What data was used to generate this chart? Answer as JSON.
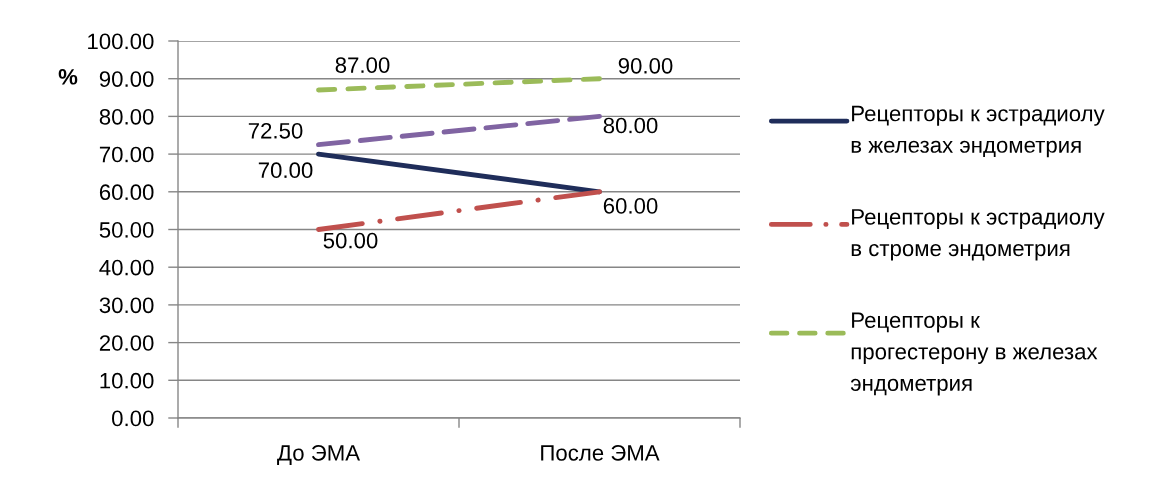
{
  "chart_data": {
    "type": "line",
    "ylabel": "%",
    "categories": [
      "До ЭМА",
      "После ЭМА"
    ],
    "series": [
      {
        "name": "Рецепторы к эстрадиолу в железах эндометрия",
        "color": "#1f2d5a",
        "values": [
          70,
          60
        ],
        "value_labels": [
          "70.00",
          "60.00"
        ],
        "line_style": "solid"
      },
      {
        "name": "Рецепторы к эстрадиолу в строме эндометрия",
        "color": "#c0504d",
        "values": [
          50,
          60
        ],
        "value_labels": [
          "50.00",
          null
        ],
        "line_style": "dashdot"
      },
      {
        "name": "Рецепторы к прогестерону в железах эндометрия",
        "color": "#9bbb59",
        "values": [
          87,
          90
        ],
        "value_labels": [
          "87.00",
          "90.00"
        ],
        "line_style": "dashed"
      },
      {
        "color": "#8064a2",
        "values": [
          72.5,
          80
        ],
        "value_labels": [
          "72.50",
          "80.00"
        ],
        "line_style": "long_dashed"
      }
    ],
    "ylim": [
      0,
      100
    ],
    "yticks": [
      {
        "value": 0,
        "label": "0.00"
      },
      {
        "value": 10,
        "label": "10.00"
      },
      {
        "value": 20,
        "label": "20.00"
      },
      {
        "value": 30,
        "label": "30.00"
      },
      {
        "value": 40,
        "label": "40.00"
      },
      {
        "value": 50,
        "label": "50.00"
      },
      {
        "value": 60,
        "label": "60.00"
      },
      {
        "value": 70,
        "label": "70.00"
      },
      {
        "value": 80,
        "label": "80.00"
      },
      {
        "value": 90,
        "label": "90.00"
      },
      {
        "value": 100,
        "label": "100.00"
      }
    ],
    "grid": "y",
    "legend": "right"
  }
}
